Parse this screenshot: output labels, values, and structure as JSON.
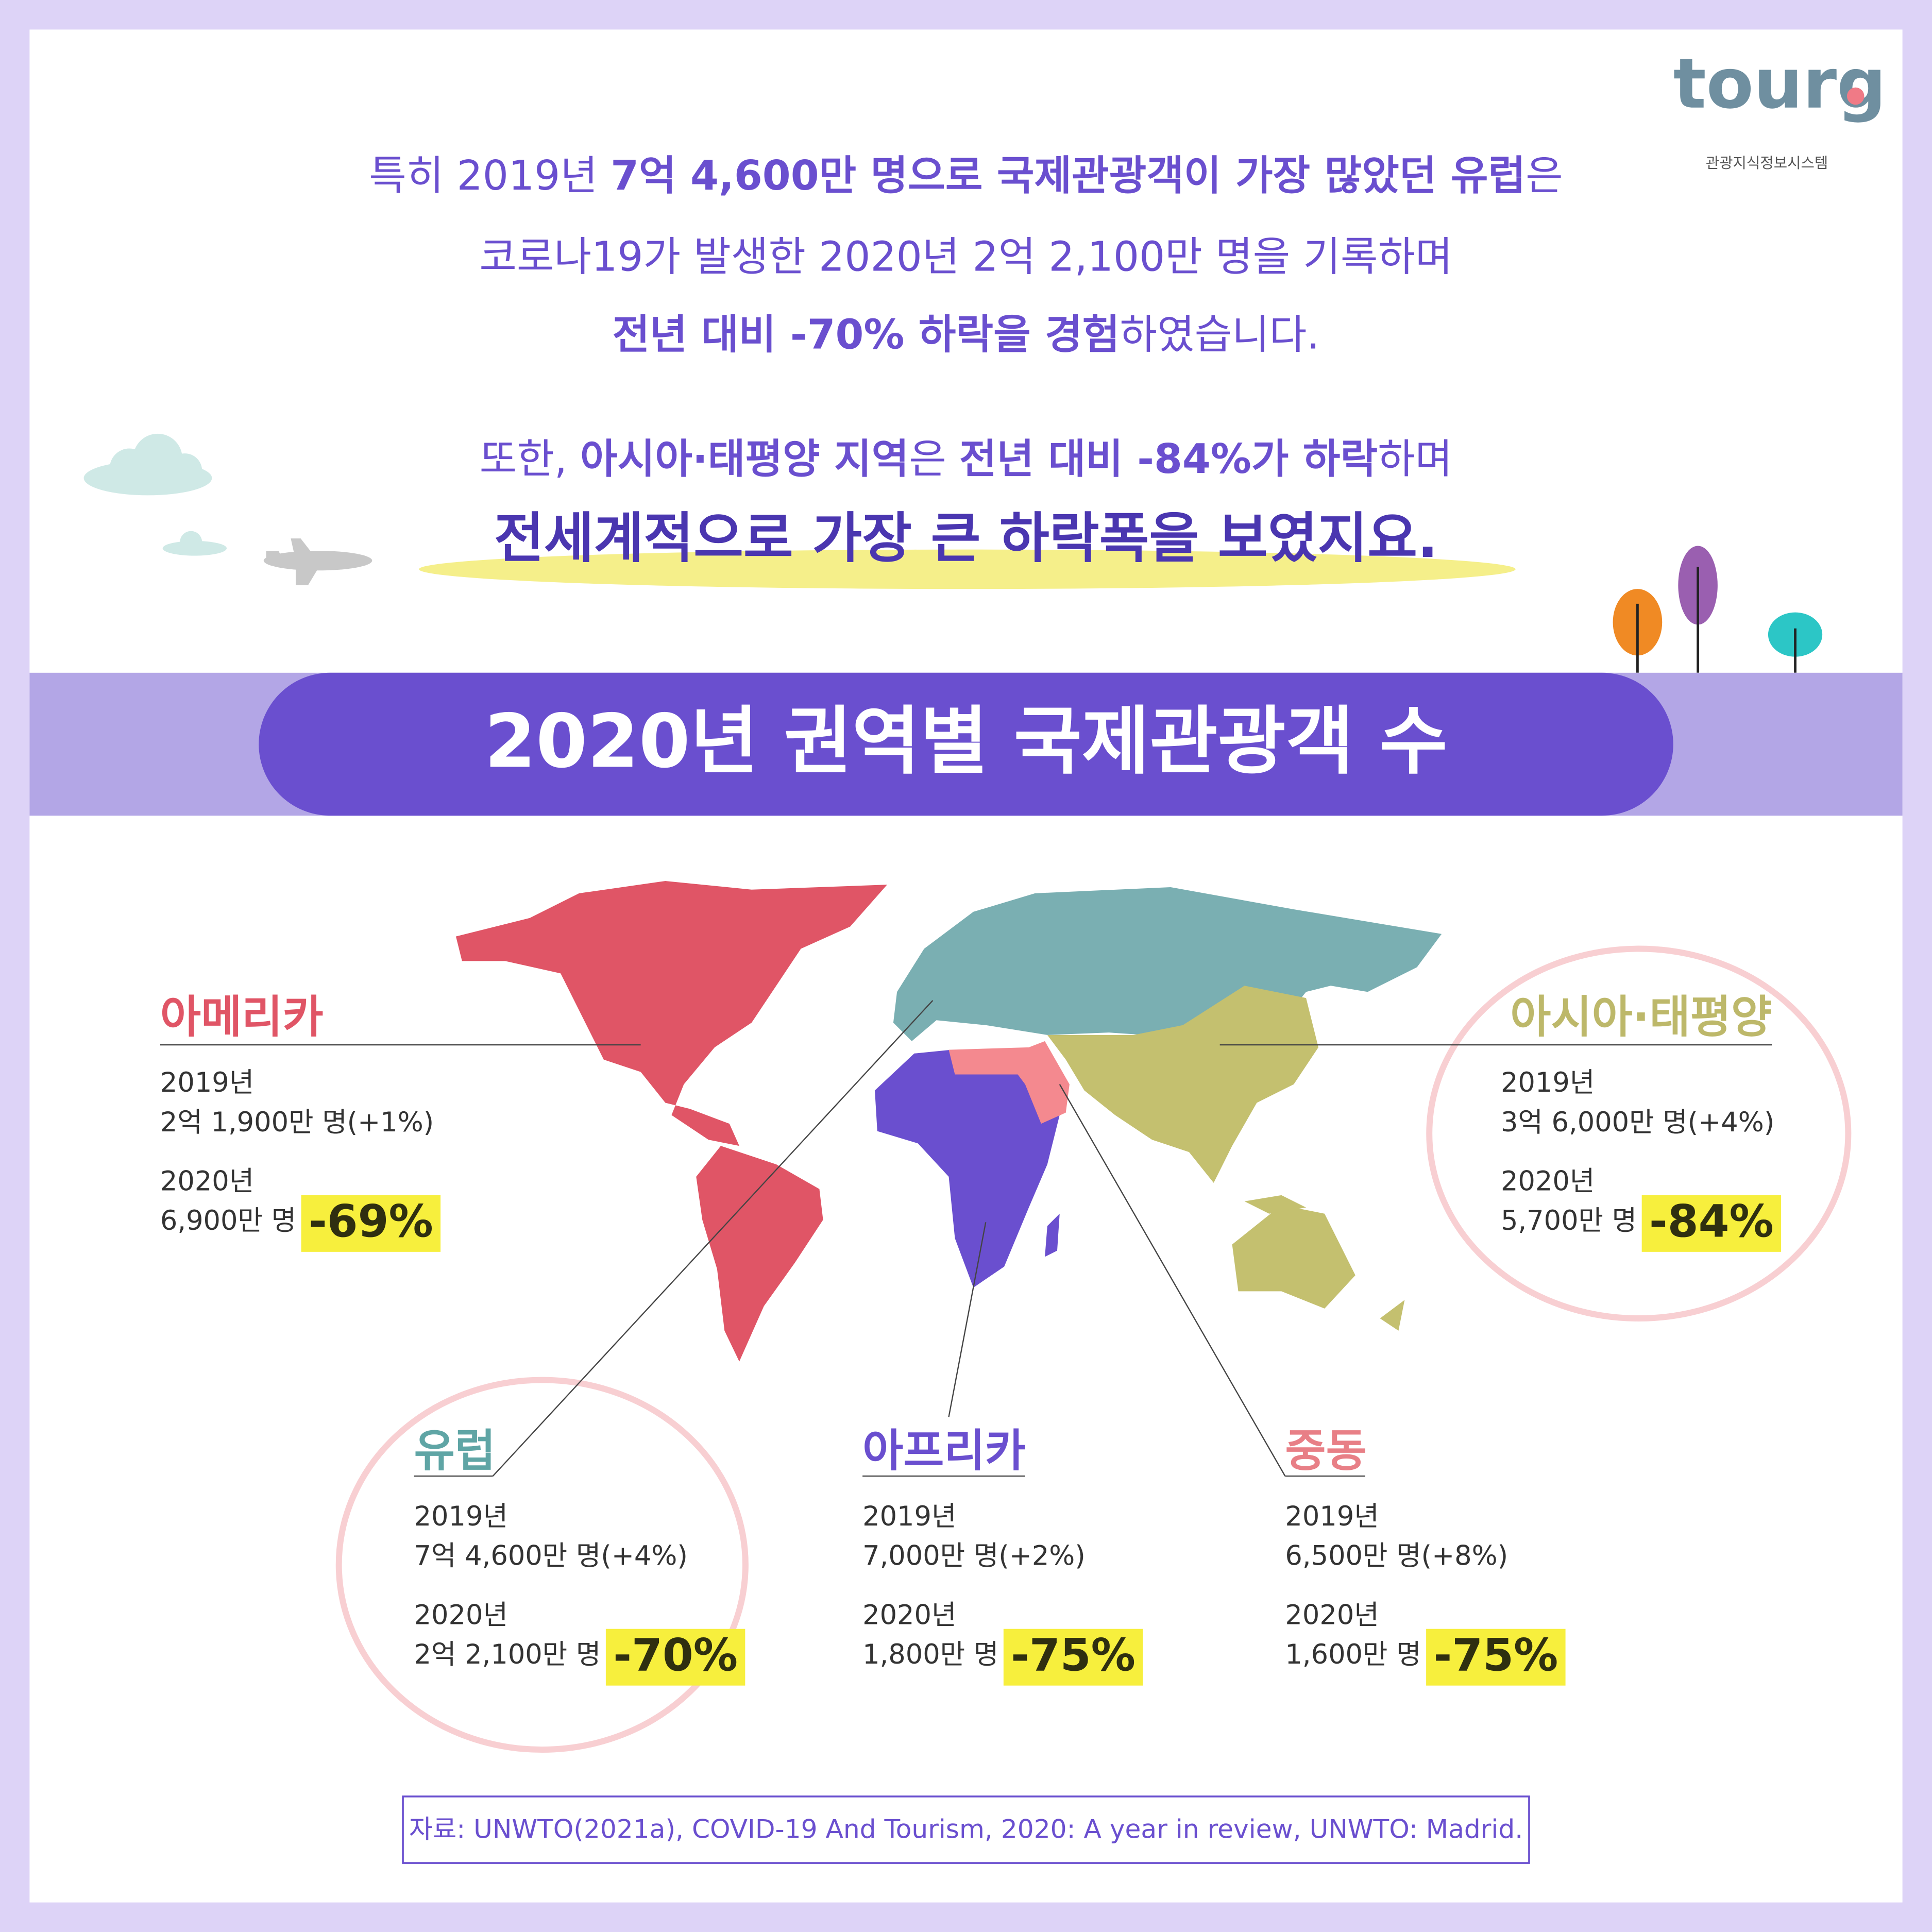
{
  "logo": {
    "name": "tourg",
    "tagline": "관광지식정보시스템"
  },
  "intro": [
    [
      "특히 2019년 ",
      "7억 4,600만 명으로 국제관광객이 가장 많았던 유럽",
      "은"
    ],
    [
      "코로나19가 발생한 2020년 2억 2,100만 명을 기록하며"
    ],
    [
      "전년 대비 -70% 하락을  경험",
      "하였습니다."
    ],
    [
      "또한, ",
      "아시아·태평양 지역",
      "은 ",
      "전년 대비 -84%가 하락",
      "하며"
    ],
    [
      "전세계적으로 가장 큰 하락폭을 보였지요."
    ]
  ],
  "banner": "2020년 권역별 국제관광객 수",
  "regions": [
    {
      "name": "아메리카",
      "label_2019": "2019년",
      "value_2019": "2억 1,900만 명(+1%)",
      "label_2020": "2020년",
      "value_2020": "6,900만 명",
      "change": "-69%"
    },
    {
      "name": "아시아·태평양",
      "label_2019": "2019년",
      "value_2019": "3억 6,000만 명(+4%)",
      "label_2020": "2020년",
      "value_2020": "5,700만 명",
      "change": "-84%"
    },
    {
      "name": "유럽",
      "label_2019": "2019년",
      "value_2019": "7억 4,600만 명(+4%)",
      "label_2020": "2020년",
      "value_2020": "2억 2,100만 명",
      "change": "-70%"
    },
    {
      "name": "아프리카",
      "label_2019": "2019년",
      "value_2019": "7,000만 명(+2%)",
      "label_2020": "2020년",
      "value_2020": "1,800만 명",
      "change": "-75%"
    },
    {
      "name": "중동",
      "label_2019": "2019년",
      "value_2019": "6,500만 명(+8%)",
      "label_2020": "2020년",
      "value_2020": "1,600만 명",
      "change": "-75%"
    }
  ],
  "source": "자료: UNWTO(2021a), COVID-19 And Tourism, 2020: A year in review, UNWTO: Madrid."
}
